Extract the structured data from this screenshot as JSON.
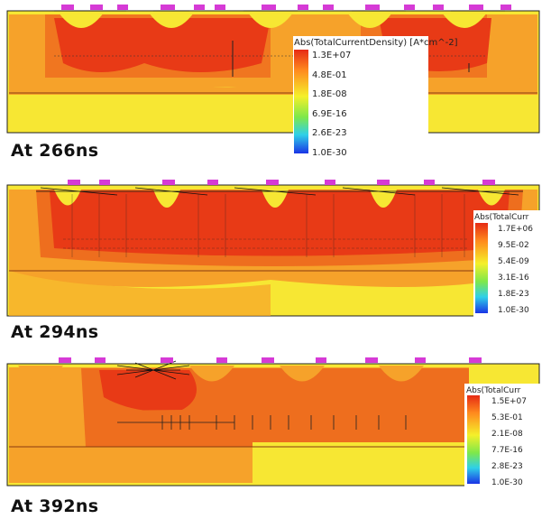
{
  "panels": [
    {
      "caption": "At 266ns",
      "legend_title": "Abs(TotalCurrentDensity) [A*cm^-2]",
      "legend_values": [
        "1.3E+07",
        "4.8E-01",
        "1.8E-08",
        "6.9E-16",
        "2.6E-23",
        "1.0E-30"
      ]
    },
    {
      "caption": "At 294ns",
      "legend_title": "Abs(TotalCurr",
      "legend_values": [
        "1.7E+06",
        "9.5E-02",
        "5.4E-09",
        "3.1E-16",
        "1.8E-23",
        "1.0E-30"
      ]
    },
    {
      "caption": "At 392ns",
      "legend_title": "Abs(TotalCurr",
      "legend_values": [
        "1.5E+07",
        "5.3E-01",
        "2.1E-08",
        "7.7E-16",
        "2.8E-23",
        "1.0E-30"
      ]
    }
  ],
  "colors": {
    "background": "#f7e733",
    "orange": "#f6a22a",
    "dark_orange": "#ee6e1e",
    "red": "#e83a16",
    "contact": "#d63ad6",
    "legend_gradient": [
      "#e62a14",
      "#ff8a1e",
      "#f5f02a",
      "#7ee84a",
      "#2fd0e8",
      "#1a34e6"
    ]
  }
}
